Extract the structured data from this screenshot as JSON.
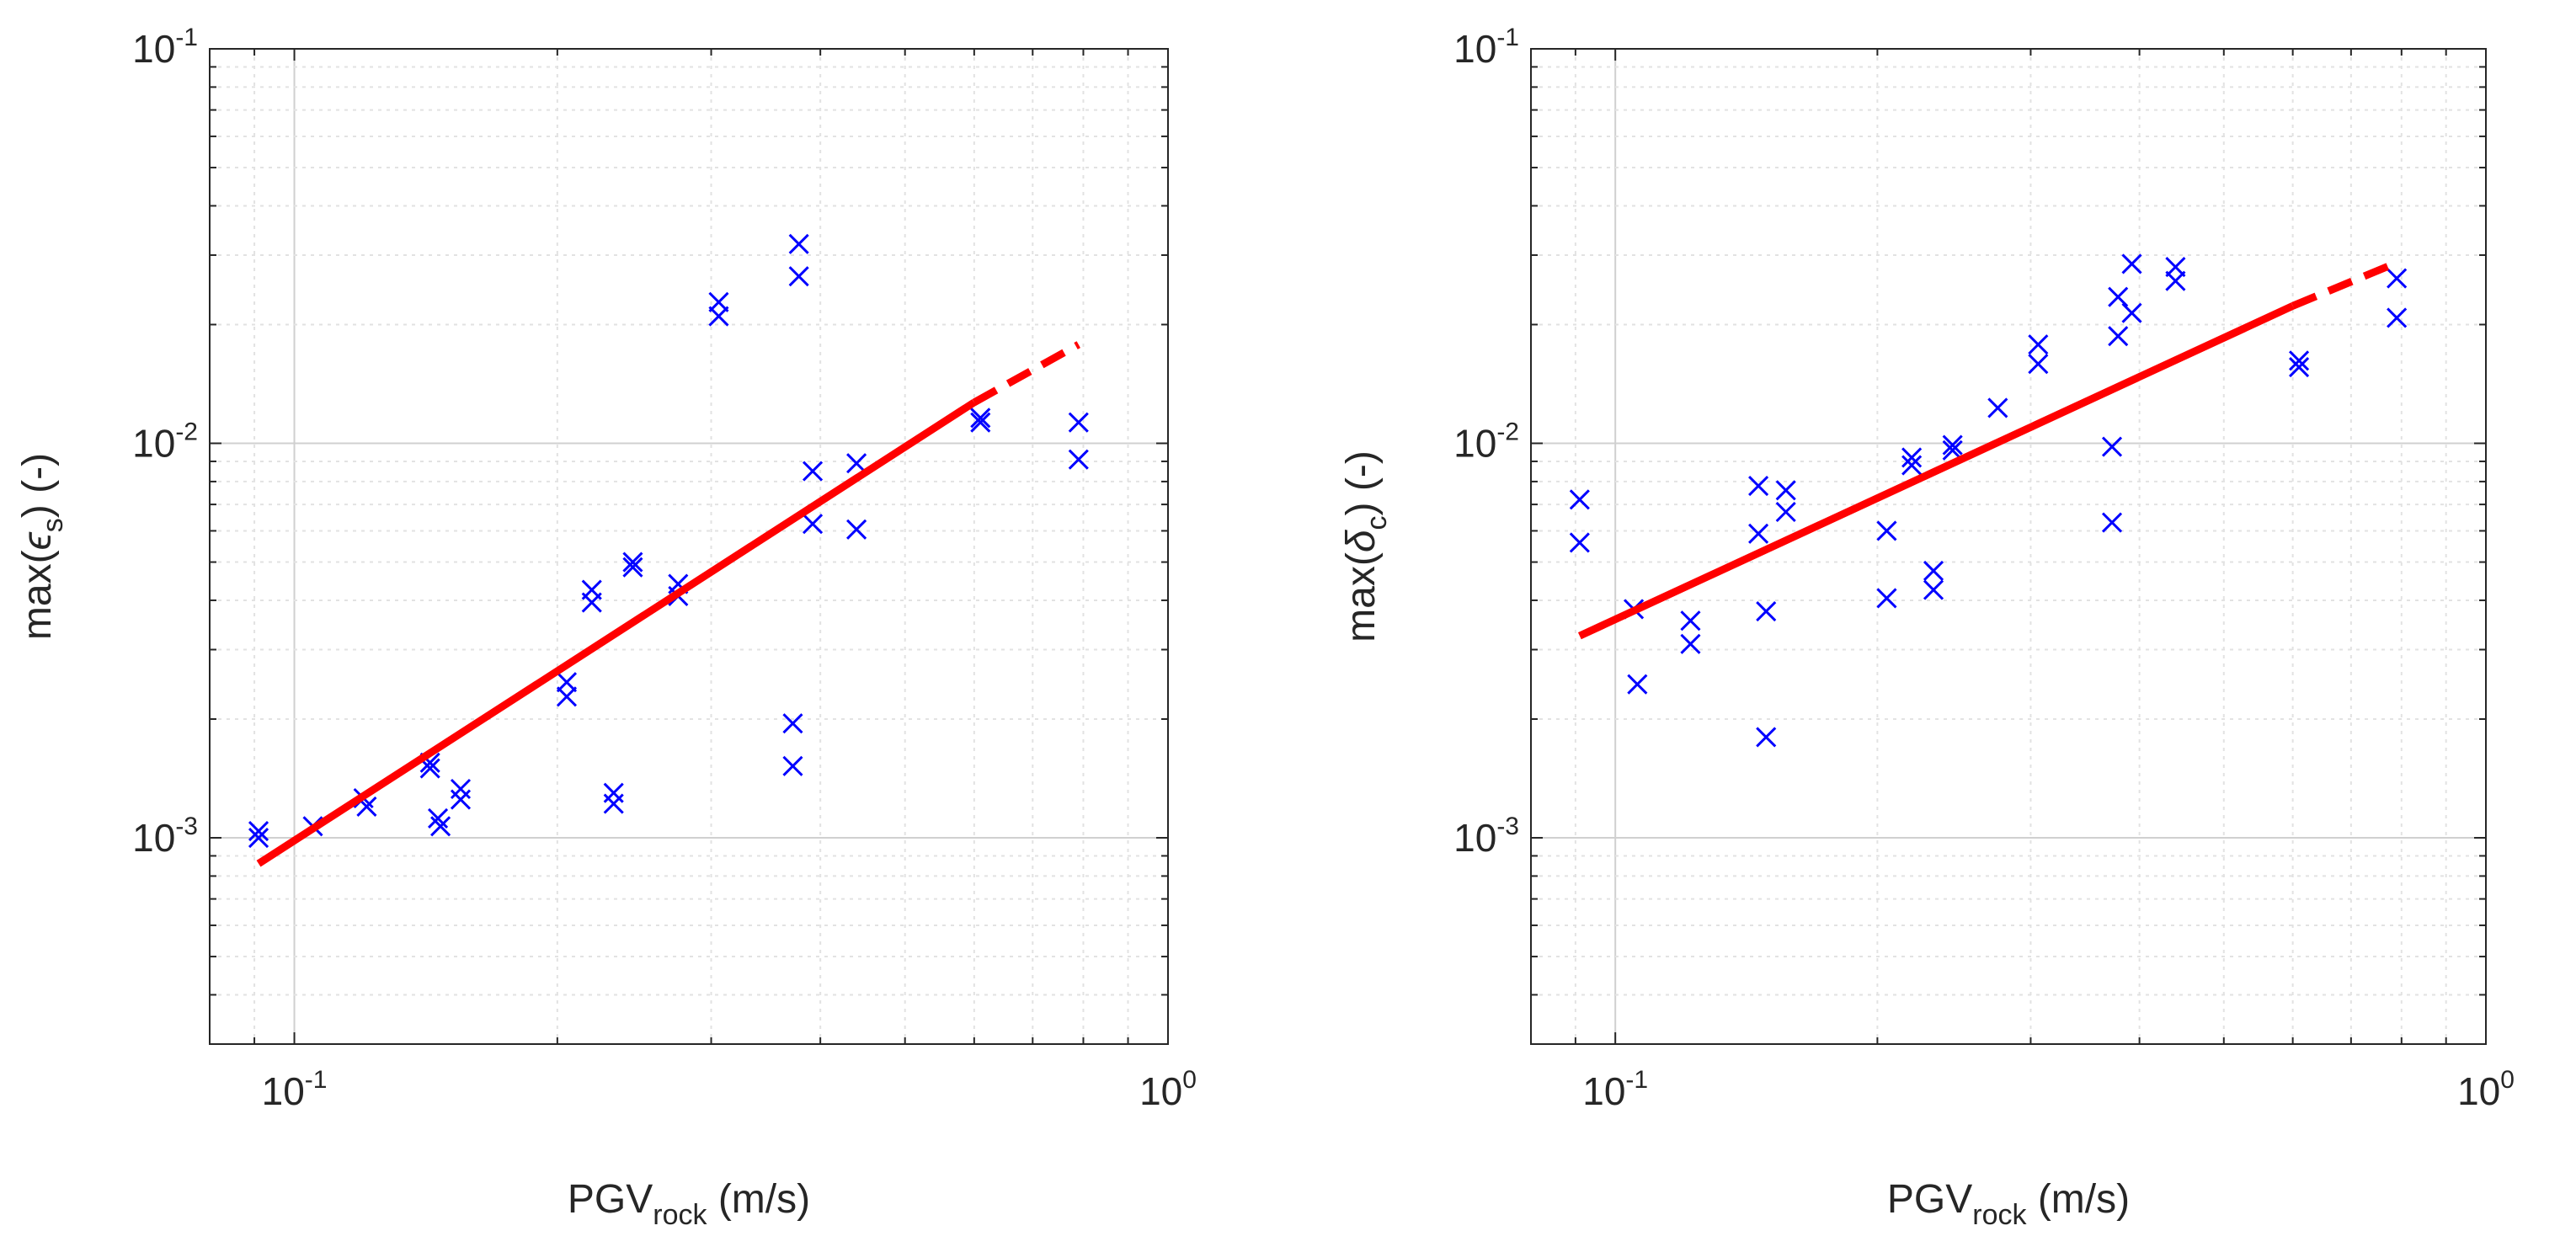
{
  "chart_data": [
    {
      "type": "scatter",
      "x_scale": "log",
      "y_scale": "log",
      "xlim": [
        0.08,
        1.0
      ],
      "ylim": [
        0.0003,
        0.1
      ],
      "xlabel": {
        "main": "PGV",
        "sub": "rock",
        "rest": " (m/s)"
      },
      "ylabel": {
        "pre": "max(",
        "symbol": "ϵ",
        "sub": "s",
        "post": ") (-)"
      },
      "x_ticks": [
        {
          "base": "10",
          "exp": "-1",
          "value": 0.1
        },
        {
          "base": "10",
          "exp": "0",
          "value": 1.0
        }
      ],
      "y_ticks": [
        {
          "base": "10",
          "exp": "-3",
          "value": 0.001
        },
        {
          "base": "10",
          "exp": "-2",
          "value": 0.01
        },
        {
          "base": "10",
          "exp": "-1",
          "value": 0.1
        }
      ],
      "grid": true,
      "series": [
        {
          "name": "data",
          "marker": "x",
          "color": "#0000ff",
          "points": [
            [
              0.091,
              0.00104
            ],
            [
              0.091,
              0.001
            ],
            [
              0.105,
              0.00107
            ],
            [
              0.12,
              0.00126
            ],
            [
              0.121,
              0.0012
            ],
            [
              0.143,
              0.00155
            ],
            [
              0.143,
              0.0015
            ],
            [
              0.146,
              0.00112
            ],
            [
              0.147,
              0.00107
            ],
            [
              0.155,
              0.00133
            ],
            [
              0.155,
              0.00125
            ],
            [
              0.205,
              0.00248
            ],
            [
              0.205,
              0.00228
            ],
            [
              0.219,
              0.00425
            ],
            [
              0.219,
              0.00395
            ],
            [
              0.232,
              0.0013
            ],
            [
              0.232,
              0.00122
            ],
            [
              0.244,
              0.005
            ],
            [
              0.244,
              0.00485
            ],
            [
              0.275,
              0.0044
            ],
            [
              0.275,
              0.0041
            ],
            [
              0.306,
              0.0228
            ],
            [
              0.306,
              0.021
            ],
            [
              0.372,
              0.00195
            ],
            [
              0.372,
              0.00152
            ],
            [
              0.378,
              0.032
            ],
            [
              0.378,
              0.0265
            ],
            [
              0.392,
              0.0085
            ],
            [
              0.392,
              0.00625
            ],
            [
              0.44,
              0.0089
            ],
            [
              0.44,
              0.00605
            ],
            [
              0.61,
              0.0116
            ],
            [
              0.61,
              0.0113
            ],
            [
              0.79,
              0.0113
            ],
            [
              0.79,
              0.0091
            ]
          ]
        },
        {
          "name": "fit",
          "style": "solid",
          "color": "#ff0000",
          "x": [
            0.091,
            0.6
          ],
          "y": [
            0.00086,
            0.0127
          ]
        },
        {
          "name": "fit-extrapolation",
          "style": "dashed",
          "color": "#ff0000",
          "x": [
            0.6,
            0.79
          ],
          "y": [
            0.0127,
            0.0178
          ]
        }
      ]
    },
    {
      "type": "scatter",
      "x_scale": "log",
      "y_scale": "log",
      "xlim": [
        0.08,
        1.0
      ],
      "ylim": [
        0.0003,
        0.1
      ],
      "xlabel": {
        "main": "PGV",
        "sub": "rock",
        "rest": " (m/s)"
      },
      "ylabel": {
        "pre": "max(",
        "symbol": "δ",
        "sub": "c",
        "post": ") (-)"
      },
      "x_ticks": [
        {
          "base": "10",
          "exp": "-1",
          "value": 0.1
        },
        {
          "base": "10",
          "exp": "0",
          "value": 1.0
        }
      ],
      "y_ticks": [
        {
          "base": "10",
          "exp": "-3",
          "value": 0.001
        },
        {
          "base": "10",
          "exp": "-2",
          "value": 0.01
        },
        {
          "base": "10",
          "exp": "-1",
          "value": 0.1
        }
      ],
      "grid": true,
      "series": [
        {
          "name": "data",
          "marker": "x",
          "color": "#0000ff",
          "points": [
            [
              0.091,
              0.0072
            ],
            [
              0.091,
              0.0056
            ],
            [
              0.105,
              0.0038
            ],
            [
              0.106,
              0.00245
            ],
            [
              0.122,
              0.00355
            ],
            [
              0.122,
              0.0031
            ],
            [
              0.146,
              0.0078
            ],
            [
              0.146,
              0.0059
            ],
            [
              0.149,
              0.00375
            ],
            [
              0.149,
              0.0018
            ],
            [
              0.157,
              0.0076
            ],
            [
              0.157,
              0.0067
            ],
            [
              0.205,
              0.006
            ],
            [
              0.205,
              0.00405
            ],
            [
              0.219,
              0.0092
            ],
            [
              0.219,
              0.0088
            ],
            [
              0.232,
              0.00475
            ],
            [
              0.232,
              0.00425
            ],
            [
              0.244,
              0.0099
            ],
            [
              0.244,
              0.0096
            ],
            [
              0.275,
              0.0123
            ],
            [
              0.306,
              0.0178
            ],
            [
              0.306,
              0.0159
            ],
            [
              0.372,
              0.0098
            ],
            [
              0.372,
              0.0063
            ],
            [
              0.378,
              0.0235
            ],
            [
              0.378,
              0.0187
            ],
            [
              0.392,
              0.0285
            ],
            [
              0.392,
              0.0214
            ],
            [
              0.44,
              0.028
            ],
            [
              0.44,
              0.0258
            ],
            [
              0.61,
              0.0162
            ],
            [
              0.61,
              0.0156
            ],
            [
              0.79,
              0.0262
            ],
            [
              0.79,
              0.0208
            ]
          ]
        },
        {
          "name": "fit",
          "style": "solid",
          "color": "#ff0000",
          "x": [
            0.091,
            0.6
          ],
          "y": [
            0.00325,
            0.0223
          ]
        },
        {
          "name": "fit-extrapolation",
          "style": "dashed",
          "color": "#ff0000",
          "x": [
            0.6,
            0.79
          ],
          "y": [
            0.0223,
            0.0287
          ]
        }
      ]
    }
  ]
}
